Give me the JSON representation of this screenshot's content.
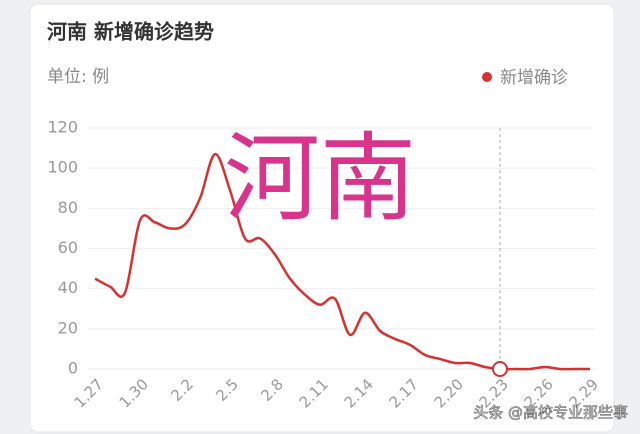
{
  "chart_data": {
    "type": "line",
    "title": "河南 新增确诊趋势",
    "unit_label": "单位: 例",
    "overlay_text": "河南",
    "watermark": "头条 @高校专业那些事",
    "categories": [
      "1.27",
      null,
      null,
      "1.30",
      null,
      null,
      "2.2",
      null,
      null,
      "2.5",
      null,
      null,
      "2.8",
      null,
      null,
      "2.11",
      null,
      null,
      "2.14",
      null,
      null,
      "2.17",
      null,
      null,
      "2.20",
      null,
      null,
      "2.23",
      null,
      null,
      "2.26",
      null,
      null,
      "2.29"
    ],
    "series": [
      {
        "name": "新增确诊",
        "color": "#d93030",
        "values": [
          45,
          41,
          38,
          74,
          73,
          70,
          72,
          85,
          107,
          89,
          65,
          65,
          57,
          45,
          37,
          32,
          35,
          17,
          28,
          19,
          15,
          12,
          7,
          5,
          3,
          3,
          1,
          0,
          0,
          0,
          1,
          0,
          0,
          0
        ]
      }
    ],
    "ylim": [
      0,
      120
    ],
    "yticks": [
      0,
      20,
      40,
      60,
      80,
      100,
      120
    ],
    "grid": true,
    "legend": "top-right"
  }
}
